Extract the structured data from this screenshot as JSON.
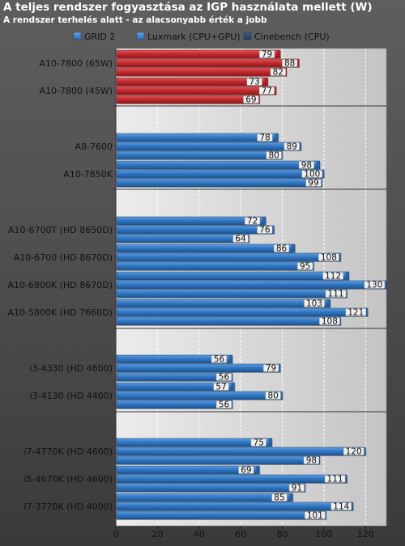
{
  "title": "A teljes rendszer fogyasztása az IGP használata mellett (W)",
  "subtitle": "A rendszer terhelés alatt - az alacsonyabb érték a jobb",
  "colors": {
    "blue": "#2f74c0",
    "red": "#c0282c",
    "value_box": "#eeeeee",
    "grid": "#ffffff"
  },
  "chart_data": {
    "type": "bar",
    "orientation": "horizontal",
    "xlim": [
      0,
      130
    ],
    "xticks": [
      0,
      20,
      40,
      60,
      80,
      100,
      120
    ],
    "grid": true,
    "legend_position": "top",
    "series_names": [
      "GRID 2",
      "Luxmark (CPU+GPU)",
      "Cinebench (CPU)"
    ],
    "groups": [
      {
        "label": "A10-7800 (65W)",
        "values": [
          79,
          88,
          82
        ],
        "color": "red"
      },
      {
        "label": "A10-7800 (45W)",
        "values": [
          73,
          77,
          69
        ],
        "color": "red"
      },
      {
        "label": "A8-7600",
        "values": [
          78,
          89,
          80
        ],
        "color": "blue"
      },
      {
        "label": "A10-7850K",
        "values": [
          98,
          100,
          99
        ],
        "color": "blue"
      },
      {
        "label": "A10-6700T (HD 8650D)",
        "values": [
          72,
          76,
          64
        ],
        "color": "blue"
      },
      {
        "label": "A10-6700 (HD 8670D)",
        "values": [
          86,
          108,
          95
        ],
        "color": "blue"
      },
      {
        "label": "A10-6800K (HD 8670D)",
        "values": [
          112,
          130,
          111
        ],
        "color": "blue"
      },
      {
        "label": "A10-5800K (HD 7660D)",
        "values": [
          103,
          121,
          108
        ],
        "color": "blue"
      },
      {
        "label": "i3-4330 (HD 4600)",
        "values": [
          56,
          79,
          56
        ],
        "color": "blue"
      },
      {
        "label": "i3-4130 (HD 4400)",
        "values": [
          57,
          80,
          56
        ],
        "color": "blue"
      },
      {
        "label": "i7-4770K (HD 4600)",
        "values": [
          75,
          120,
          98
        ],
        "color": "blue"
      },
      {
        "label": "i5-4670K (HD 4600)",
        "values": [
          69,
          111,
          91
        ],
        "color": "blue"
      },
      {
        "label": "i7-3770K (HD 4000)",
        "values": [
          85,
          114,
          101
        ],
        "color": "blue"
      }
    ]
  }
}
